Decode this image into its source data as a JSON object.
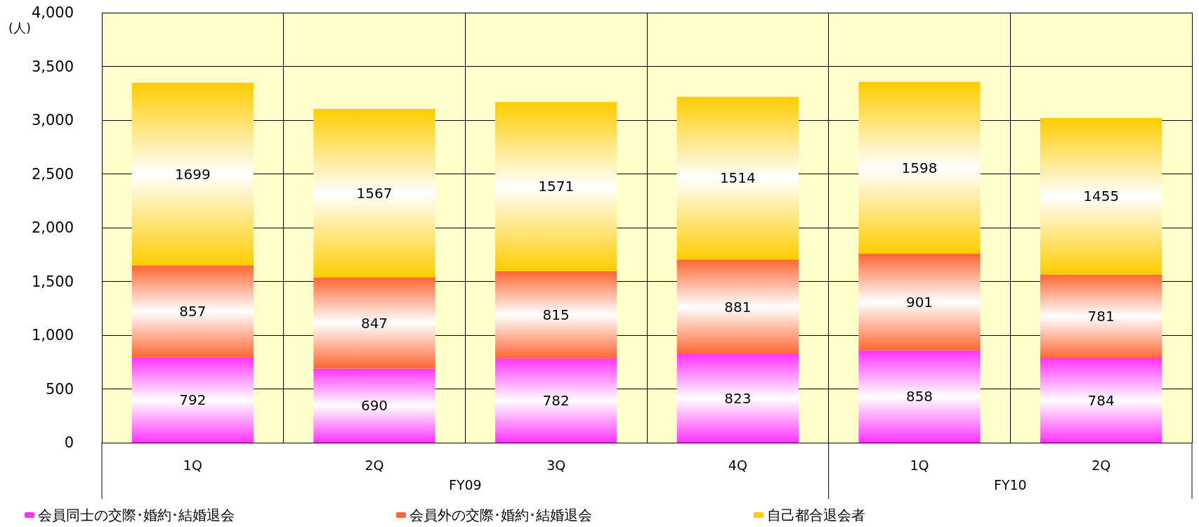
{
  "chart_data": {
    "type": "bar",
    "stacked": true,
    "ylabel": "(人)",
    "categories": [
      "1Q",
      "2Q",
      "3Q",
      "4Q",
      "1Q",
      "2Q"
    ],
    "series": [
      {
        "name": "会員同士の交際･婚約･結婚退会",
        "color": "#ff33ff",
        "values": [
          792,
          690,
          782,
          823,
          858,
          784
        ]
      },
      {
        "name": "会員外の交際･婚約･結婚退会",
        "color": "#ff6633",
        "values": [
          857,
          847,
          815,
          881,
          901,
          781
        ]
      },
      {
        "name": "自己都合退会者",
        "color": "#ffcc00",
        "values": [
          1699,
          1567,
          1571,
          1514,
          1598,
          1455
        ]
      }
    ],
    "ylim": [
      0,
      4000
    ],
    "yticks": [
      {
        "value": 0,
        "label": "0"
      },
      {
        "value": 500,
        "label": "500"
      },
      {
        "value": 1000,
        "label": "1,000"
      },
      {
        "value": 1500,
        "label": "1,500"
      },
      {
        "value": 2000,
        "label": "2,000"
      },
      {
        "value": 2500,
        "label": "2,500"
      },
      {
        "value": 3000,
        "label": "3,000"
      },
      {
        "value": 3500,
        "label": "3,500"
      },
      {
        "value": 4000,
        "label": "4,000"
      }
    ],
    "grid": true,
    "legend": "bottom",
    "data_labels": true,
    "annotations": [
      "FY09",
      "FY10"
    ]
  }
}
